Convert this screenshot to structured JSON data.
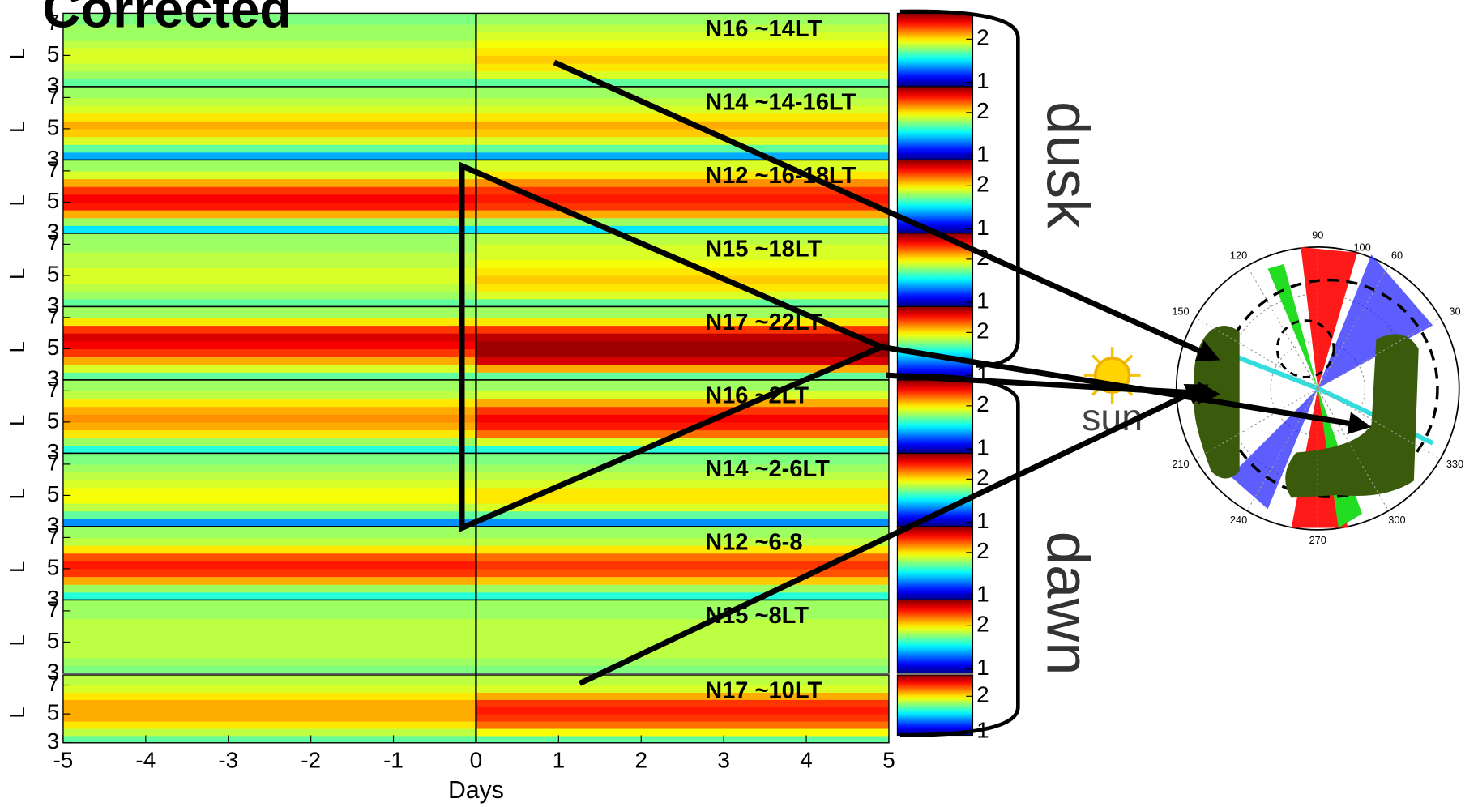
{
  "chart_data": {
    "type": "heatmap",
    "title": "Corrected",
    "xlabel": "Days",
    "ylabel": "L",
    "xlim": [
      -5,
      5
    ],
    "xticks": [
      -5,
      -4,
      -3,
      -2,
      -1,
      0,
      1,
      2,
      3,
      4,
      5
    ],
    "ylim": [
      3,
      7.7
    ],
    "yticks": [
      3,
      5,
      7
    ],
    "lbins": [
      3,
      3.5,
      4,
      4.5,
      5,
      5.5,
      6,
      6.5,
      7,
      7.7
    ],
    "clim": [
      0.9,
      2.6
    ],
    "cticks": [
      1,
      2
    ],
    "colormap": "jet",
    "panels": [
      {
        "label": "N16 ~14LT",
        "before": [
          1.7,
          1.8,
          1.85,
          1.9,
          1.9,
          1.85,
          1.8,
          1.8,
          1.75
        ],
        "after": [
          1.7,
          1.9,
          2.0,
          2.05,
          2.0,
          1.95,
          1.9,
          1.85,
          1.8
        ]
      },
      {
        "label": "N14 ~14-16LT",
        "before": [
          1.4,
          1.7,
          1.9,
          2.05,
          2.1,
          2.0,
          1.9,
          1.85,
          1.8
        ],
        "after": [
          1.4,
          1.7,
          1.9,
          2.05,
          2.1,
          2.0,
          1.9,
          1.85,
          1.8
        ]
      },
      {
        "label": "N12 ~16-18LT",
        "before": [
          1.5,
          1.8,
          2.1,
          2.35,
          2.4,
          2.3,
          2.1,
          1.9,
          1.8
        ],
        "after": [
          1.5,
          1.8,
          2.1,
          2.3,
          2.35,
          2.3,
          2.15,
          2.0,
          1.9
        ]
      },
      {
        "label": "N15 ~18LT",
        "before": [
          1.7,
          1.8,
          1.85,
          1.9,
          1.9,
          1.85,
          1.85,
          1.8,
          1.8
        ],
        "after": [
          1.7,
          1.9,
          2.0,
          2.05,
          2.0,
          1.95,
          1.9,
          1.9,
          1.85
        ]
      },
      {
        "label": "N17 ~22LT",
        "before": [
          1.7,
          1.9,
          2.1,
          2.3,
          2.4,
          2.45,
          2.3,
          2.0,
          1.8
        ],
        "after": [
          1.7,
          2.1,
          2.45,
          2.55,
          2.55,
          2.5,
          2.3,
          2.0,
          1.8
        ]
      },
      {
        "label": "N16 ~2LT",
        "before": [
          1.6,
          1.8,
          2.0,
          2.1,
          2.15,
          2.1,
          2.0,
          1.85,
          1.8
        ],
        "after": [
          1.6,
          1.9,
          2.2,
          2.35,
          2.4,
          2.3,
          2.1,
          1.9,
          1.8
        ]
      },
      {
        "label": "N14 ~2-6LT",
        "before": [
          1.35,
          1.7,
          1.85,
          1.95,
          1.95,
          1.9,
          1.85,
          1.8,
          1.75
        ],
        "after": [
          1.35,
          1.7,
          1.9,
          2.0,
          2.0,
          1.9,
          1.85,
          1.8,
          1.75
        ]
      },
      {
        "label": "N12 ~6-8",
        "before": [
          1.6,
          1.8,
          2.1,
          2.3,
          2.35,
          2.25,
          2.0,
          1.85,
          1.8
        ],
        "after": [
          1.6,
          1.8,
          2.05,
          2.25,
          2.3,
          2.2,
          2.0,
          1.85,
          1.8
        ]
      },
      {
        "label": "N15 ~8LT",
        "before": [
          1.75,
          1.8,
          1.85,
          1.85,
          1.85,
          1.85,
          1.85,
          1.8,
          1.8
        ],
        "after": [
          1.75,
          1.8,
          1.85,
          1.85,
          1.85,
          1.85,
          1.85,
          1.8,
          1.8
        ]
      },
      {
        "label": "N17 ~10LT",
        "before": [
          1.7,
          1.85,
          2.0,
          2.1,
          2.1,
          2.1,
          2.0,
          1.9,
          1.85
        ],
        "after": [
          1.7,
          1.95,
          2.2,
          2.3,
          2.35,
          2.3,
          2.1,
          1.9,
          1.85
        ]
      }
    ],
    "annotations": {
      "dusk": "dusk",
      "dawn": "dawn",
      "sun": "sun"
    },
    "polar": {
      "thetaticks": [
        30,
        60,
        90,
        120,
        150,
        210,
        240,
        270,
        300,
        330
      ],
      "rlabel": 100
    }
  }
}
